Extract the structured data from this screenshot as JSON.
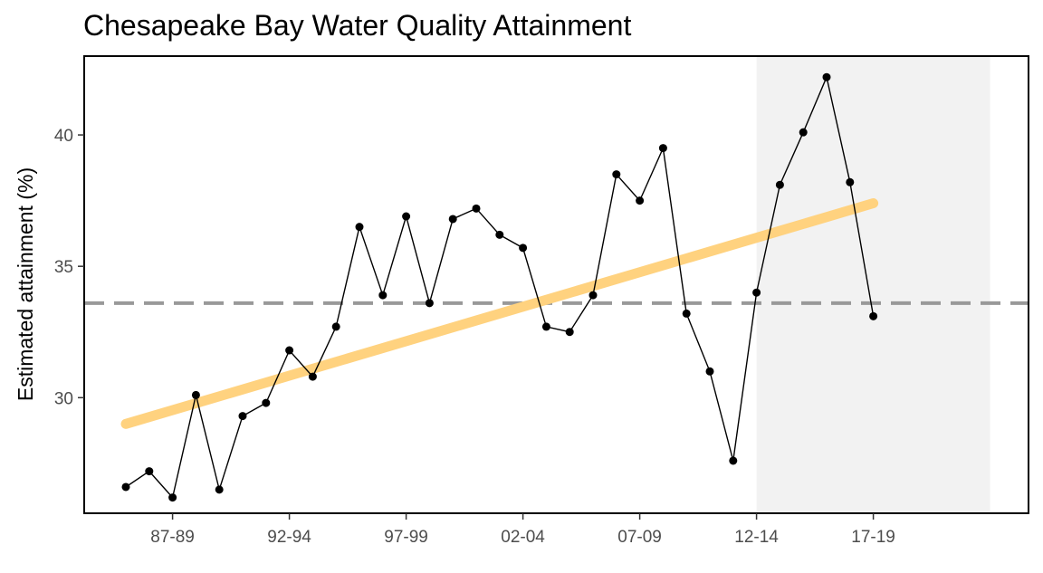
{
  "chart_data": {
    "type": "line",
    "title": "Chesapeake Bay Water Quality Attainment",
    "xlabel": "",
    "ylabel": "Estimated attainment (%)",
    "x_ticks": [
      "87-89",
      "92-94",
      "97-99",
      "02-04",
      "07-09",
      "12-14",
      "17-19"
    ],
    "ylim": [
      25.6,
      43.0
    ],
    "y_ticks": [
      30,
      35,
      40
    ],
    "grid": false,
    "series": [
      {
        "values": [
          {
            "x": "85-87",
            "y": 26.6
          },
          {
            "x": "86-88",
            "y": 27.2
          },
          {
            "x": "87-89",
            "y": 26.2
          },
          {
            "x": "88-90",
            "y": 30.1
          },
          {
            "x": "89-91",
            "y": 26.5
          },
          {
            "x": "90-92",
            "y": 29.3
          },
          {
            "x": "91-93",
            "y": 29.8
          },
          {
            "x": "92-94",
            "y": 31.8
          },
          {
            "x": "93-95",
            "y": 30.8
          },
          {
            "x": "94-96",
            "y": 32.7
          },
          {
            "x": "95-97",
            "y": 36.5
          },
          {
            "x": "96-98",
            "y": 33.9
          },
          {
            "x": "97-99",
            "y": 36.9
          },
          {
            "x": "98-00",
            "y": 33.6
          },
          {
            "x": "99-01",
            "y": 36.8
          },
          {
            "x": "00-02",
            "y": 37.2
          },
          {
            "x": "01-03",
            "y": 36.2
          },
          {
            "x": "02-04",
            "y": 35.7
          },
          {
            "x": "03-05",
            "y": 32.7
          },
          {
            "x": "04-06",
            "y": 32.5
          },
          {
            "x": "05-07",
            "y": 33.9
          },
          {
            "x": "06-08",
            "y": 38.5
          },
          {
            "x": "07-09",
            "y": 37.5
          },
          {
            "x": "08-10",
            "y": 39.5
          },
          {
            "x": "09-11",
            "y": 33.2
          },
          {
            "x": "10-12",
            "y": 31.0
          },
          {
            "x": "11-13",
            "y": 27.6
          },
          {
            "x": "12-14",
            "y": 34.0
          },
          {
            "x": "13-15",
            "y": 38.1
          },
          {
            "x": "14-16",
            "y": 40.1
          },
          {
            "x": "15-17",
            "y": 42.2
          },
          {
            "x": "16-18",
            "y": 38.2
          },
          {
            "x": "17-19",
            "y": 33.1
          }
        ],
        "color": "#000000"
      }
    ],
    "trend_line": {
      "start": {
        "x": "85-87",
        "y": 29.0
      },
      "end": {
        "x": "17-19",
        "y": 37.4
      },
      "color": "#FFD27F"
    },
    "reference_line": {
      "y": 33.6,
      "style": "dashed",
      "color": "#999999"
    },
    "shaded_region": {
      "from": "12-14",
      "to": "22-24",
      "color": "#F2F2F2"
    }
  }
}
